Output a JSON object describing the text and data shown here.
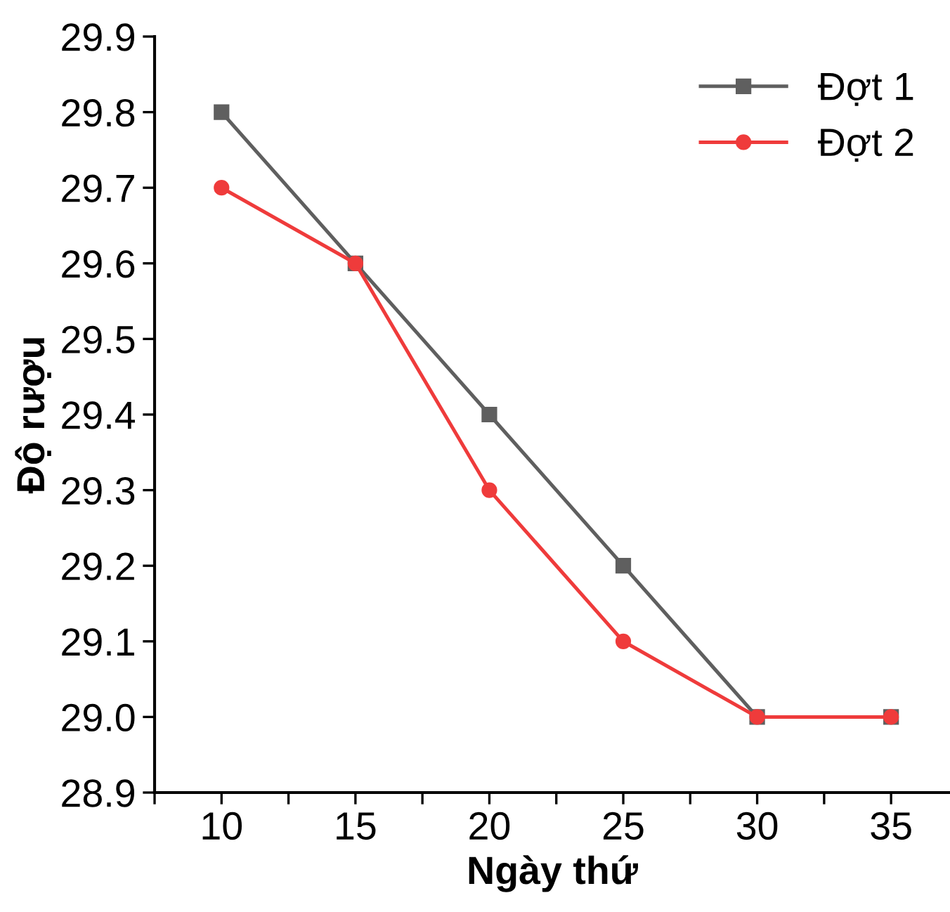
{
  "chart_data": {
    "type": "line",
    "xlabel": "Ngày thứ",
    "ylabel": "Độ rượu",
    "x": [
      10,
      15,
      20,
      25,
      30,
      35
    ],
    "series": [
      {
        "name": "Đợt 1",
        "color": "#5f5f5f",
        "marker": "square",
        "values": [
          29.8,
          29.6,
          29.4,
          29.2,
          29.0,
          29.0
        ]
      },
      {
        "name": "Đợt 2",
        "color": "#ef3b3b",
        "marker": "circle",
        "values": [
          29.7,
          29.6,
          29.3,
          29.1,
          29.0,
          29.0
        ]
      }
    ],
    "xlim": [
      7.5,
      37.2
    ],
    "xticks": [
      {
        "value": 7.5,
        "label": null
      },
      10,
      {
        "value": 12.5,
        "label": null
      },
      15,
      {
        "value": 17.5,
        "label": null
      },
      20,
      {
        "value": 22.5,
        "label": null
      },
      25,
      {
        "value": 27.5,
        "label": null
      },
      30,
      {
        "value": 32.5,
        "label": null
      },
      35
    ],
    "ylim": [
      28.9,
      29.9
    ],
    "yticks": [
      {
        "value": 28.9,
        "label": "28.9"
      },
      {
        "value": 29.0,
        "label": "29.0"
      },
      {
        "value": 29.1,
        "label": "29.1"
      },
      {
        "value": 29.2,
        "label": "29.2"
      },
      {
        "value": 29.3,
        "label": "29.3"
      },
      {
        "value": 29.4,
        "label": "29.4"
      },
      {
        "value": 29.5,
        "label": "29.5"
      },
      {
        "value": 29.6,
        "label": "29.6"
      },
      {
        "value": 29.7,
        "label": "29.7"
      },
      {
        "value": 29.8,
        "label": "29.8"
      },
      {
        "value": 29.9,
        "label": "29.9"
      }
    ],
    "grid": false,
    "legend": "top right",
    "line_style": "solid"
  }
}
